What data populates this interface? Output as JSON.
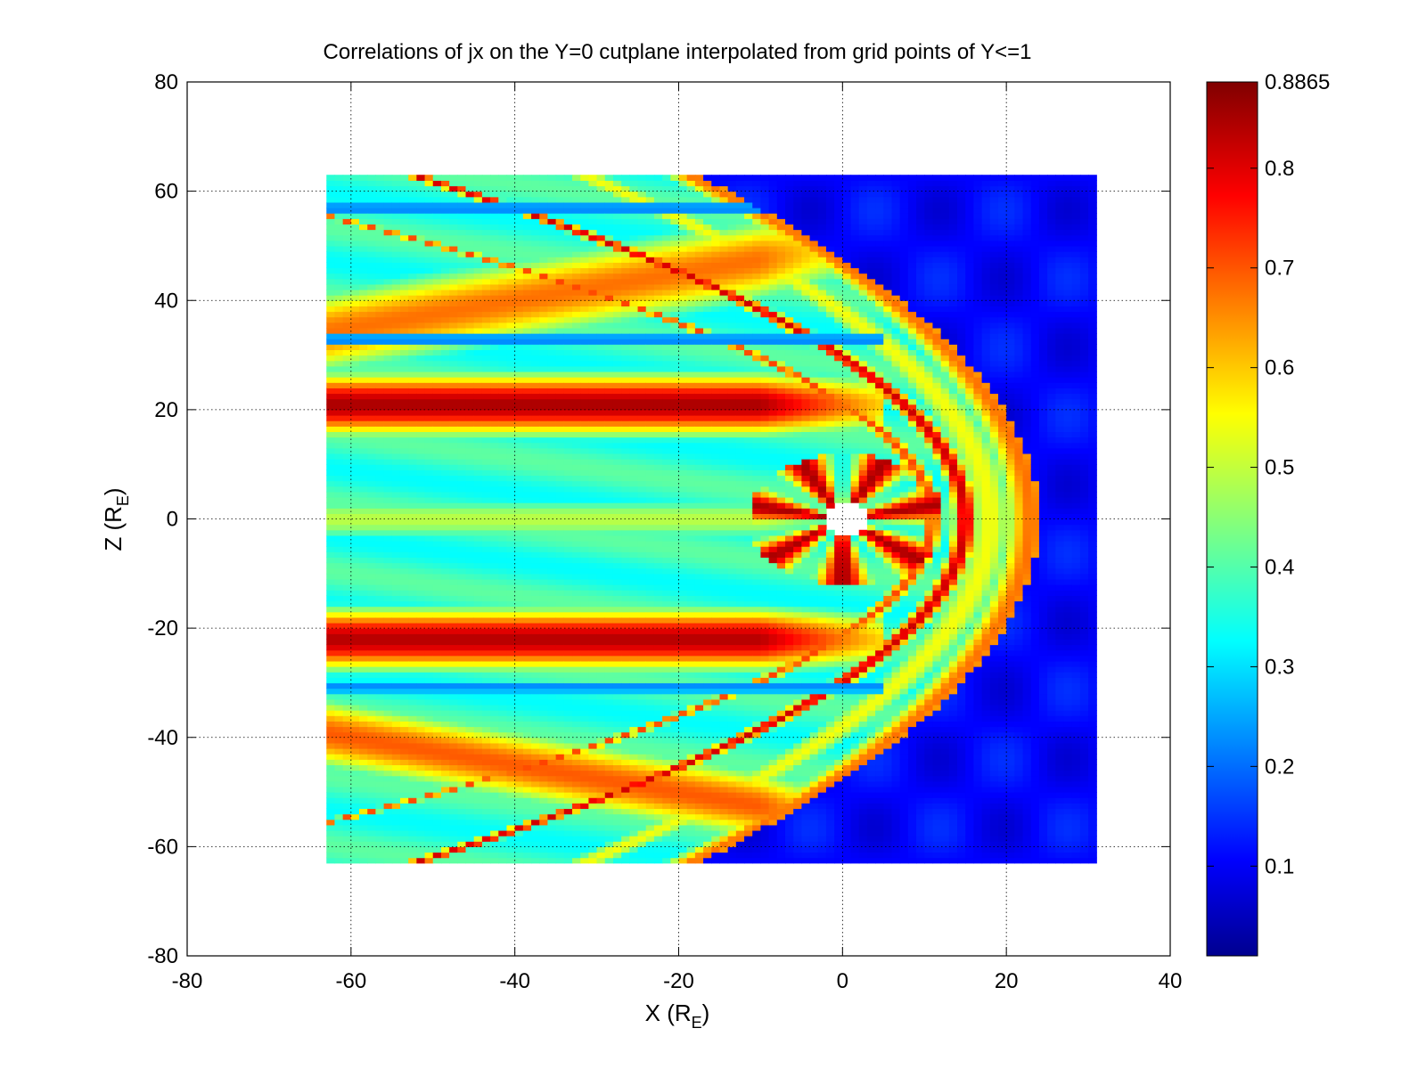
{
  "chart_data": {
    "type": "heatmap",
    "title": "Correlations of jx on the Y=0 cutplane interpolated from grid points of Y<=1",
    "xlabel": {
      "main": "X (R",
      "sub": "E",
      "close": ")"
    },
    "ylabel": {
      "main": "Z (R",
      "sub": "E",
      "close": ")"
    },
    "xlim": [
      -80,
      40
    ],
    "ylim": [
      -80,
      80
    ],
    "xticks": [
      -80,
      -60,
      -40,
      -20,
      0,
      20,
      40
    ],
    "yticks": [
      -80,
      -60,
      -40,
      -20,
      0,
      20,
      40,
      60,
      80
    ],
    "grid": true,
    "colormap": "jet",
    "clim": [
      0.01,
      0.8865
    ],
    "colorbar_ticks": [
      0.1,
      0.2,
      0.3,
      0.4,
      0.5,
      0.6,
      0.7,
      0.8
    ],
    "colorbar_max_label": "0.8865",
    "data_extent": {
      "x": [
        -63,
        31
      ],
      "z": [
        -63,
        63
      ]
    },
    "earth_hole": {
      "x": 0.5,
      "z": 0,
      "radius": 3
    },
    "approximate_features": {
      "background_upstream": 0.12,
      "wake_base": 0.38,
      "bow_shock_band": {
        "nose_x": 23,
        "value": 0.48,
        "width": 2.5
      },
      "magnetosheath_shell": {
        "nose_x": 18,
        "value": 0.55,
        "width": 3
      },
      "inner_arcs": [
        {
          "nose_x": 15,
          "value": 0.82,
          "width": 1.4
        },
        {
          "nose_x": 11,
          "value": 0.72,
          "width": 1.2
        }
      ],
      "tail_bands": [
        {
          "z_center": 21,
          "value": 0.85,
          "width": 5
        },
        {
          "z_center": -22,
          "value": 0.84,
          "width": 5
        },
        {
          "z_center": 45,
          "value": 0.68,
          "width": 7
        },
        {
          "z_center": -50,
          "value": 0.7,
          "width": 6
        },
        {
          "z_center": 0,
          "value": 0.5,
          "width": 4
        }
      ]
    }
  }
}
